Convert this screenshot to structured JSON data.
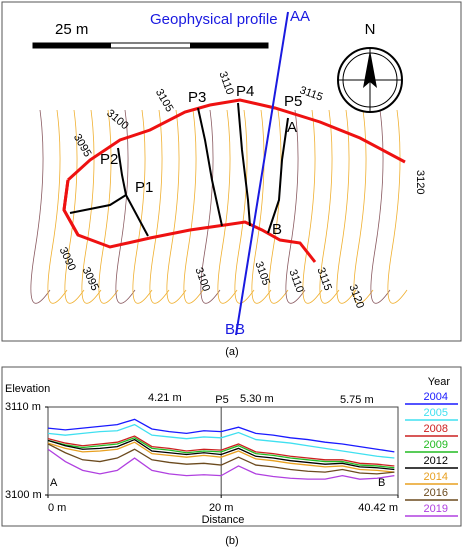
{
  "map": {
    "profile_label": "Geophysical profile",
    "scale_label": "25 m",
    "north": "N",
    "profile_ends": [
      "AA",
      "BB"
    ],
    "points": [
      "P1",
      "P2",
      "P3",
      "P4",
      "P5"
    ],
    "markers": [
      "A",
      "B"
    ],
    "contour_labels": [
      "3090",
      "3095",
      "3100",
      "3105",
      "3110",
      "3115",
      "3120",
      "3095",
      "3100",
      "3105",
      "3110",
      "3115",
      "3120"
    ]
  },
  "captions": [
    "(a)",
    "(b)"
  ],
  "chart_data": {
    "type": "line",
    "x_label": "Distance",
    "y_label": "Elevation",
    "legend_title": "Year",
    "annotations": [
      "P5",
      "4.21 m",
      "5.30 m",
      "5.75 m",
      "A",
      "B"
    ],
    "xlim": [
      0,
      40.42
    ],
    "xticks": [
      {
        "value": 0,
        "label": "0 m"
      },
      {
        "value": 20,
        "label": "20 m"
      },
      {
        "value": 40.42,
        "label": "40.42 m"
      }
    ],
    "ylim": [
      3100,
      3110
    ],
    "yticks": [
      {
        "value": 3100,
        "label": "3100 m"
      },
      {
        "value": 3110,
        "label": "3110 m"
      }
    ],
    "x": [
      0,
      2,
      4,
      6,
      8,
      10,
      12,
      14,
      16,
      18,
      20,
      22,
      24,
      26,
      28,
      30,
      32,
      34,
      36,
      38,
      40
    ],
    "series": [
      {
        "name": "2004",
        "color": "#1a1aff",
        "values": [
          3107.6,
          3107.4,
          3107.6,
          3107.8,
          3108.0,
          3108.6,
          3107.5,
          3107.2,
          3107.0,
          3107.3,
          3107.2,
          3107.7,
          3107.0,
          3106.8,
          3106.5,
          3106.3,
          3106.0,
          3105.8,
          3105.5,
          3105.2,
          3104.9
        ]
      },
      {
        "name": "2005",
        "color": "#40e0f0",
        "values": [
          3107.0,
          3106.8,
          3107.0,
          3107.2,
          3107.3,
          3108.0,
          3106.8,
          3106.6,
          3106.4,
          3106.6,
          3106.5,
          3107.1,
          3106.3,
          3106.1,
          3105.9,
          3105.6,
          3105.3,
          3105.0,
          3104.7,
          3104.4,
          3104.2
        ]
      },
      {
        "name": "2008",
        "color": "#cc2020",
        "values": [
          3106.4,
          3105.9,
          3105.6,
          3105.8,
          3106.0,
          3106.7,
          3105.5,
          3105.3,
          3105.0,
          3105.2,
          3105.1,
          3105.8,
          3104.9,
          3104.7,
          3104.4,
          3104.2,
          3104.0,
          3104.0,
          3103.6,
          3103.5,
          3103.3
        ]
      },
      {
        "name": "2009",
        "color": "#22bb22",
        "values": [
          3106.2,
          3105.7,
          3105.4,
          3105.6,
          3105.8,
          3106.5,
          3105.3,
          3105.1,
          3104.8,
          3105.0,
          3104.9,
          3105.6,
          3104.7,
          3104.5,
          3104.2,
          3104.0,
          3103.8,
          3103.8,
          3103.4,
          3103.3,
          3103.1
        ]
      },
      {
        "name": "2012",
        "color": "#000000",
        "values": [
          3106.2,
          3105.6,
          3105.2,
          3105.3,
          3105.5,
          3106.3,
          3105.0,
          3104.8,
          3104.6,
          3104.8,
          3104.6,
          3105.3,
          3104.4,
          3104.2,
          3103.9,
          3103.7,
          3103.5,
          3103.6,
          3103.2,
          3103.1,
          3102.9
        ]
      },
      {
        "name": "2014",
        "color": "#e8a020",
        "values": [
          3105.9,
          3105.3,
          3104.9,
          3105.0,
          3105.2,
          3106.0,
          3104.7,
          3104.5,
          3104.3,
          3104.5,
          3104.3,
          3105.0,
          3104.1,
          3103.9,
          3103.6,
          3103.4,
          3103.2,
          3103.3,
          3102.9,
          3102.8,
          3102.6
        ]
      },
      {
        "name": "2016",
        "color": "#6b4a1e",
        "values": [
          3105.8,
          3104.8,
          3104.0,
          3103.8,
          3104.2,
          3105.2,
          3104.0,
          3103.7,
          3103.5,
          3103.6,
          3103.4,
          3104.3,
          3103.4,
          3103.2,
          3102.9,
          3102.7,
          3102.6,
          3102.9,
          3102.5,
          3102.4,
          3102.6
        ]
      },
      {
        "name": "2019",
        "color": "#b040e0",
        "values": [
          3105.2,
          3103.8,
          3102.8,
          3102.4,
          3102.8,
          3104.2,
          3102.8,
          3102.4,
          3102.2,
          3102.3,
          3102.2,
          3103.3,
          3102.4,
          3102.1,
          3101.9,
          3101.8,
          3101.8,
          3102.2,
          3101.8,
          3101.9,
          3102.2
        ]
      }
    ]
  }
}
